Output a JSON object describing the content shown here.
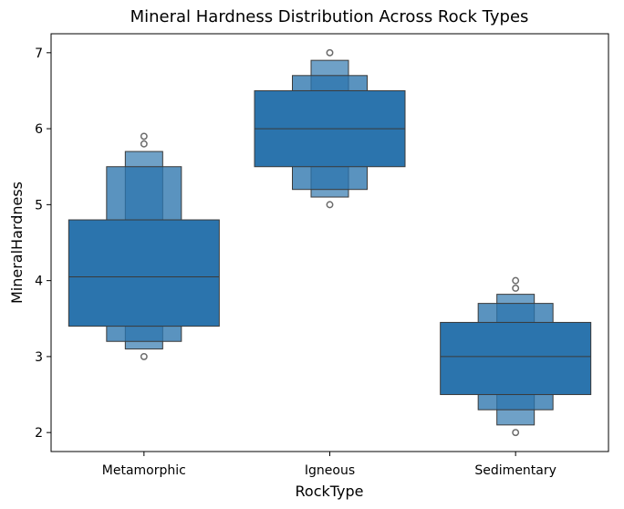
{
  "chart_data": {
    "type": "boxen",
    "title": "Mineral Hardness Distribution Across Rock Types",
    "xlabel": "RockType",
    "ylabel": "MineralHardness",
    "ylim": [
      1.75,
      7.25
    ],
    "yticks": [
      2,
      3,
      4,
      5,
      6,
      7
    ],
    "grid": false,
    "color": "#2b74ad",
    "categories": [
      "Metamorphic",
      "Igneous",
      "Sedimentary"
    ],
    "series": [
      {
        "category": "Metamorphic",
        "median": 4.05,
        "levels": [
          {
            "low": 3.4,
            "high": 4.8
          },
          {
            "low": 3.2,
            "high": 5.5
          },
          {
            "low": 3.1,
            "high": 5.7
          }
        ],
        "outliers": [
          3.0,
          5.8,
          5.9
        ]
      },
      {
        "category": "Igneous",
        "median": 6.0,
        "levels": [
          {
            "low": 5.5,
            "high": 6.5
          },
          {
            "low": 5.2,
            "high": 6.7
          },
          {
            "low": 5.1,
            "high": 6.9
          }
        ],
        "outliers": [
          5.0,
          7.0
        ]
      },
      {
        "category": "Sedimentary",
        "median": 3.0,
        "levels": [
          {
            "low": 2.5,
            "high": 3.45
          },
          {
            "low": 2.3,
            "high": 3.7
          },
          {
            "low": 2.1,
            "high": 3.82
          }
        ],
        "outliers": [
          2.0,
          3.9,
          4.0
        ]
      }
    ]
  }
}
